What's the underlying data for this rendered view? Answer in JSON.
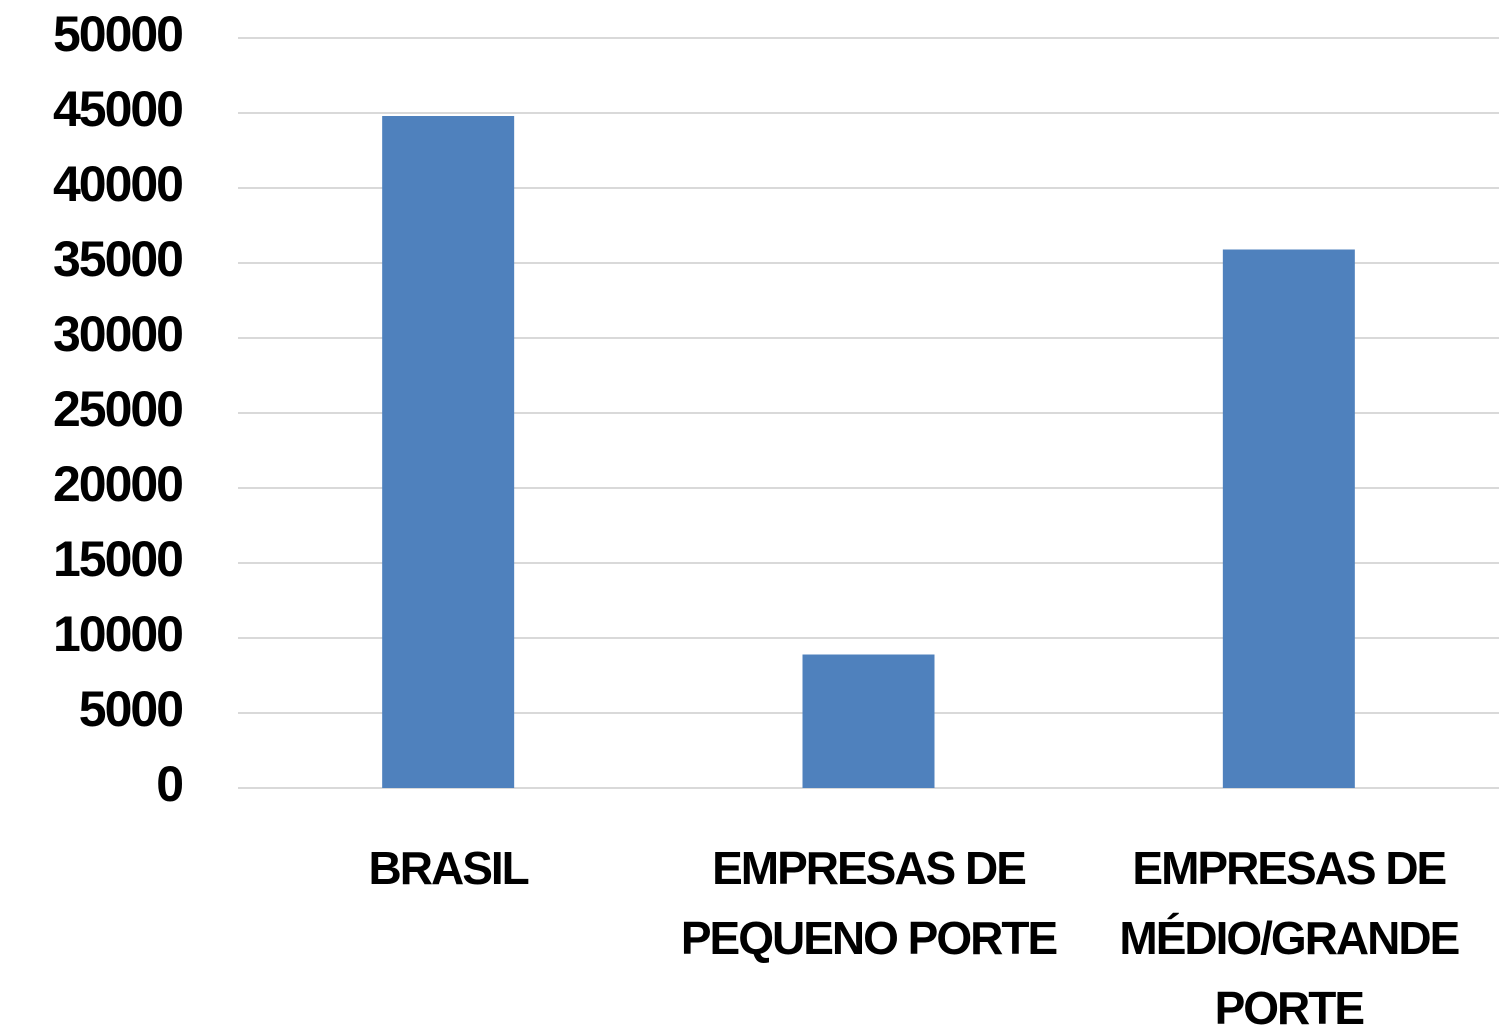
{
  "chart_data": {
    "type": "bar",
    "categories": [
      "BRASIL",
      "EMPRESAS DE PEQUENO PORTE",
      "EMPRESAS DE MÉDIO/GRANDE PORTE"
    ],
    "values": [
      44800,
      8900,
      35900
    ],
    "color": "#4f81bd",
    "ylim": [
      0,
      50000
    ],
    "yticks": [
      0,
      5000,
      10000,
      15000,
      20000,
      25000,
      30000,
      35000,
      40000,
      45000,
      50000
    ],
    "grid": true
  }
}
